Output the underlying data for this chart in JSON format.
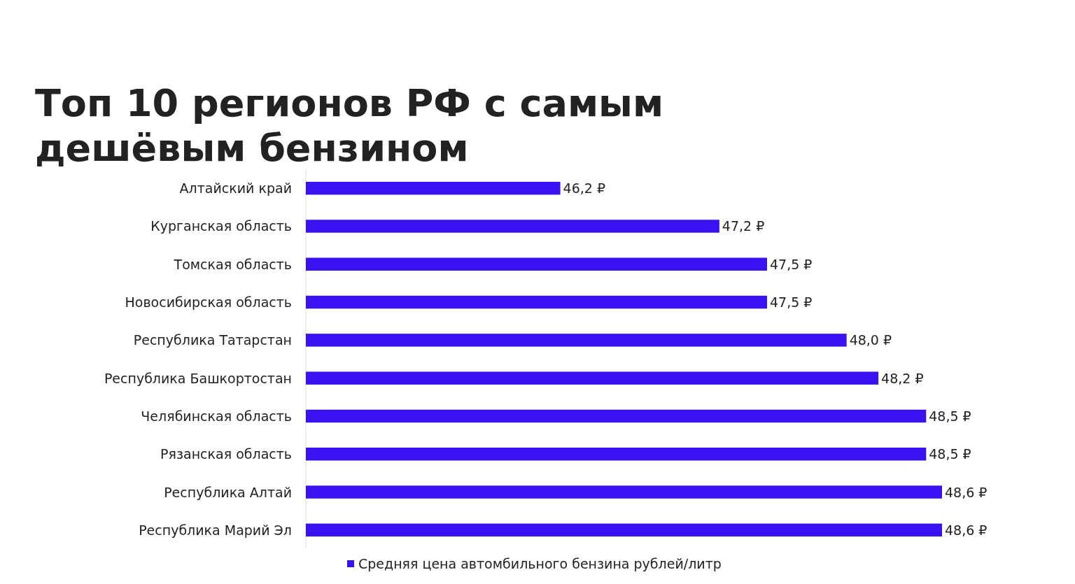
{
  "chart_data": {
    "type": "bar",
    "orientation": "horizontal",
    "title": "Топ 10 регионов РФ с самым дешёвым бензином",
    "categories": [
      "Алтайский край",
      "Курганская область",
      "Томская область",
      "Новосибирская область",
      "Республика Татарстан",
      "Республика Башкортостан",
      "Челябинская область",
      "Рязанская область",
      "Республика Алтай",
      "Республика Марий Эл"
    ],
    "series": [
      {
        "name": "Средняя цена автомбильного бензина рублей/литр",
        "color": "#3a12f2",
        "values": [
          46.2,
          47.2,
          47.5,
          47.5,
          48.0,
          48.2,
          48.5,
          48.5,
          48.6,
          48.6
        ],
        "value_labels": [
          "46,2 ₽",
          "47,2 ₽",
          "47,5 ₽",
          "47,5 ₽",
          "48,0 ₽",
          "48,2 ₽",
          "48,5 ₽",
          "48,5 ₽",
          "48,6 ₽",
          "48,6 ₽"
        ]
      }
    ],
    "xlim": [
      44.6,
      48.6
    ],
    "tick_labels": "y",
    "legend": "bottom"
  }
}
